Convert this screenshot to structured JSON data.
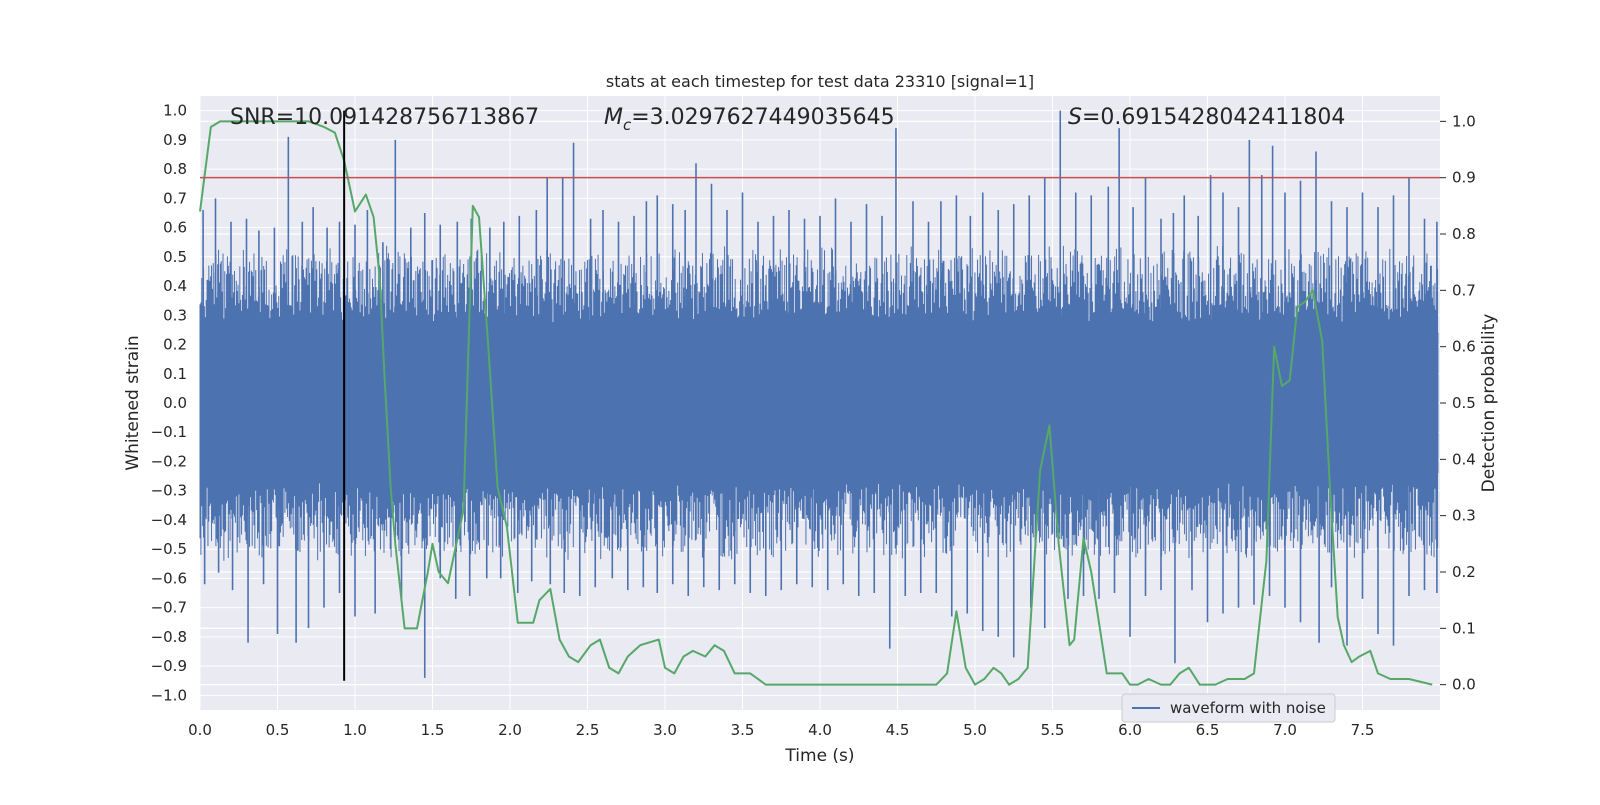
{
  "chart_data": {
    "type": "line",
    "title": "stats at each timestep for test data 23310 [signal=1]",
    "xlabel": "Time (s)",
    "ylabel": "Whitened strain",
    "y2label": "Detection probability",
    "xlim": [
      0.0,
      8.0
    ],
    "ylim": [
      -1.05,
      1.05
    ],
    "y2lim": [
      -0.045,
      1.045
    ],
    "xticks": [
      "0.0",
      "0.5",
      "1.0",
      "1.5",
      "2.0",
      "2.5",
      "3.0",
      "3.5",
      "4.0",
      "4.5",
      "5.0",
      "5.5",
      "6.0",
      "6.5",
      "7.0",
      "7.5"
    ],
    "yticks": [
      "1.0",
      "0.9",
      "0.8",
      "0.7",
      "0.6",
      "0.5",
      "0.4",
      "0.3",
      "0.2",
      "0.1",
      "0.0",
      "-0.1",
      "-0.2",
      "-0.3",
      "-0.4",
      "-0.5",
      "-0.6",
      "-0.7",
      "-0.8",
      "-0.9",
      "-1.0"
    ],
    "y2ticks": [
      "1.0",
      "0.9",
      "0.8",
      "0.7",
      "0.6",
      "0.5",
      "0.4",
      "0.3",
      "0.2",
      "0.1",
      "0.0"
    ],
    "annotations": {
      "snr": "SNR=10.091428756713867",
      "mc_symbol": "M",
      "mc_sub": "c",
      "mc_value": "=3.0297627449035645",
      "s_symbol": "S",
      "s_value": "=0.6915428042411804"
    },
    "threshold_y2": 0.9,
    "event_time_x": 0.93,
    "event_line_ylim": [
      -0.95,
      1.0
    ],
    "legend": {
      "label": "waveform with noise",
      "location": "lower right"
    },
    "series": [
      {
        "name": "waveform with noise",
        "color": "#4c72b0",
        "axis": "left",
        "envelope_hi": 0.45,
        "envelope_lo": -0.45,
        "spikes_up": [
          [
            0.02,
            0.66
          ],
          [
            0.1,
            0.7
          ],
          [
            0.2,
            0.62
          ],
          [
            0.3,
            0.63
          ],
          [
            0.38,
            0.59
          ],
          [
            0.48,
            0.6
          ],
          [
            0.57,
            0.91
          ],
          [
            0.66,
            0.62
          ],
          [
            0.73,
            0.67
          ],
          [
            0.82,
            0.6
          ],
          [
            0.9,
            0.62
          ],
          [
            1.0,
            0.61
          ],
          [
            1.08,
            0.66
          ],
          [
            1.18,
            0.55
          ],
          [
            1.26,
            0.9
          ],
          [
            1.36,
            0.6
          ],
          [
            1.45,
            0.65
          ],
          [
            1.55,
            0.61
          ],
          [
            1.66,
            0.62
          ],
          [
            1.75,
            0.63
          ],
          [
            1.87,
            0.6
          ],
          [
            1.96,
            0.62
          ],
          [
            2.06,
            0.64
          ],
          [
            2.17,
            0.66
          ],
          [
            2.24,
            0.77
          ],
          [
            2.34,
            0.77
          ],
          [
            2.41,
            0.89
          ],
          [
            2.52,
            0.63
          ],
          [
            2.6,
            0.66
          ],
          [
            2.7,
            0.62
          ],
          [
            2.8,
            0.64
          ],
          [
            2.88,
            0.69
          ],
          [
            2.95,
            0.71
          ],
          [
            3.05,
            0.68
          ],
          [
            3.13,
            0.66
          ],
          [
            3.2,
            0.82
          ],
          [
            3.3,
            0.75
          ],
          [
            3.4,
            0.66
          ],
          [
            3.5,
            0.72
          ],
          [
            3.6,
            0.62
          ],
          [
            3.7,
            0.64
          ],
          [
            3.8,
            0.66
          ],
          [
            3.9,
            0.63
          ],
          [
            4.0,
            0.64
          ],
          [
            4.1,
            0.7
          ],
          [
            4.2,
            0.62
          ],
          [
            4.3,
            0.68
          ],
          [
            4.4,
            0.64
          ],
          [
            4.49,
            0.94
          ],
          [
            4.6,
            0.69
          ],
          [
            4.7,
            0.62
          ],
          [
            4.78,
            0.69
          ],
          [
            4.88,
            0.71
          ],
          [
            4.97,
            0.64
          ],
          [
            5.05,
            0.72
          ],
          [
            5.15,
            0.66
          ],
          [
            5.25,
            0.68
          ],
          [
            5.35,
            0.71
          ],
          [
            5.45,
            0.77
          ],
          [
            5.55,
            1.0
          ],
          [
            5.65,
            0.72
          ],
          [
            5.75,
            0.71
          ],
          [
            5.86,
            0.74
          ],
          [
            5.93,
            0.94
          ],
          [
            6.02,
            0.67
          ],
          [
            6.1,
            0.77
          ],
          [
            6.2,
            0.63
          ],
          [
            6.28,
            0.65
          ],
          [
            6.35,
            0.71
          ],
          [
            6.44,
            0.64
          ],
          [
            6.52,
            0.78
          ],
          [
            6.6,
            0.72
          ],
          [
            6.7,
            0.67
          ],
          [
            6.77,
            0.9
          ],
          [
            6.85,
            0.78
          ],
          [
            6.92,
            0.88
          ],
          [
            7.0,
            0.72
          ],
          [
            7.1,
            0.76
          ],
          [
            7.2,
            0.86
          ],
          [
            7.3,
            0.69
          ],
          [
            7.4,
            0.67
          ],
          [
            7.5,
            0.72
          ],
          [
            7.6,
            0.67
          ],
          [
            7.7,
            0.71
          ],
          [
            7.8,
            0.77
          ],
          [
            7.9,
            0.63
          ],
          [
            7.98,
            0.62
          ]
        ],
        "spikes_down": [
          [
            0.03,
            -0.62
          ],
          [
            0.12,
            -0.58
          ],
          [
            0.21,
            -0.64
          ],
          [
            0.31,
            -0.82
          ],
          [
            0.41,
            -0.62
          ],
          [
            0.5,
            -0.79
          ],
          [
            0.62,
            -0.82
          ],
          [
            0.7,
            -0.77
          ],
          [
            0.8,
            -0.7
          ],
          [
            0.9,
            -0.65
          ],
          [
            1.0,
            -0.73
          ],
          [
            1.13,
            -0.72
          ],
          [
            1.3,
            -0.67
          ],
          [
            1.45,
            -0.94
          ],
          [
            1.55,
            -0.6
          ],
          [
            1.65,
            -0.67
          ],
          [
            1.74,
            -0.66
          ],
          [
            1.85,
            -0.6
          ],
          [
            1.94,
            -0.6
          ],
          [
            2.05,
            -0.65
          ],
          [
            2.14,
            -0.61
          ],
          [
            2.26,
            -0.62
          ],
          [
            2.35,
            -0.65
          ],
          [
            2.45,
            -0.66
          ],
          [
            2.55,
            -0.63
          ],
          [
            2.66,
            -0.6
          ],
          [
            2.76,
            -0.64
          ],
          [
            2.86,
            -0.63
          ],
          [
            2.95,
            -0.65
          ],
          [
            3.05,
            -0.62
          ],
          [
            3.15,
            -0.66
          ],
          [
            3.25,
            -0.63
          ],
          [
            3.35,
            -0.64
          ],
          [
            3.45,
            -0.62
          ],
          [
            3.55,
            -0.65
          ],
          [
            3.65,
            -0.66
          ],
          [
            3.75,
            -0.64
          ],
          [
            3.85,
            -0.62
          ],
          [
            3.95,
            -0.63
          ],
          [
            4.05,
            -0.64
          ],
          [
            4.15,
            -0.62
          ],
          [
            4.25,
            -0.66
          ],
          [
            4.35,
            -0.65
          ],
          [
            4.45,
            -0.84
          ],
          [
            4.55,
            -0.66
          ],
          [
            4.65,
            -0.65
          ],
          [
            4.75,
            -0.65
          ],
          [
            4.85,
            -0.73
          ],
          [
            4.95,
            -0.72
          ],
          [
            5.05,
            -0.78
          ],
          [
            5.15,
            -0.8
          ],
          [
            5.25,
            -0.87
          ],
          [
            5.36,
            -0.7
          ],
          [
            5.45,
            -0.77
          ],
          [
            5.6,
            -0.67
          ],
          [
            5.7,
            -0.66
          ],
          [
            5.8,
            -0.67
          ],
          [
            5.9,
            -0.65
          ],
          [
            6.0,
            -0.8
          ],
          [
            6.1,
            -0.66
          ],
          [
            6.2,
            -0.64
          ],
          [
            6.29,
            -0.89
          ],
          [
            6.4,
            -0.64
          ],
          [
            6.5,
            -0.75
          ],
          [
            6.6,
            -0.72
          ],
          [
            6.7,
            -0.7
          ],
          [
            6.8,
            -0.69
          ],
          [
            6.9,
            -0.66
          ],
          [
            7.0,
            -0.7
          ],
          [
            7.1,
            -0.75
          ],
          [
            7.22,
            -0.82
          ],
          [
            7.3,
            -0.63
          ],
          [
            7.4,
            -0.83
          ],
          [
            7.5,
            -0.67
          ],
          [
            7.6,
            -0.79
          ],
          [
            7.7,
            -0.83
          ],
          [
            7.8,
            -0.66
          ],
          [
            7.9,
            -0.64
          ],
          [
            7.98,
            -0.65
          ]
        ]
      },
      {
        "name": "detection probability",
        "color": "#55a868",
        "axis": "right",
        "x": [
          0.0,
          0.07,
          0.13,
          0.2,
          0.3,
          0.4,
          0.5,
          0.6,
          0.7,
          0.8,
          0.87,
          0.93,
          1.0,
          1.07,
          1.12,
          1.16,
          1.19,
          1.23,
          1.26,
          1.32,
          1.4,
          1.47,
          1.5,
          1.54,
          1.6,
          1.7,
          1.76,
          1.8,
          1.86,
          1.92,
          1.98,
          2.05,
          2.15,
          2.19,
          2.26,
          2.32,
          2.38,
          2.44,
          2.52,
          2.58,
          2.64,
          2.7,
          2.76,
          2.84,
          2.96,
          3.0,
          3.06,
          3.12,
          3.18,
          3.26,
          3.32,
          3.38,
          3.45,
          3.55,
          3.65,
          3.8,
          4.0,
          4.2,
          4.4,
          4.6,
          4.75,
          4.82,
          4.88,
          4.94,
          5.0,
          5.06,
          5.12,
          5.17,
          5.22,
          5.28,
          5.34,
          5.42,
          5.48,
          5.54,
          5.61,
          5.64,
          5.7,
          5.75,
          5.85,
          5.95,
          6.0,
          6.05,
          6.12,
          6.2,
          6.26,
          6.32,
          6.38,
          6.45,
          6.5,
          6.55,
          6.63,
          6.7,
          6.74,
          6.8,
          6.88,
          6.93,
          6.98,
          7.03,
          7.08,
          7.13,
          7.18,
          7.24,
          7.29,
          7.34,
          7.38,
          7.43,
          7.48,
          7.55,
          7.6,
          7.68,
          7.8,
          7.95
        ],
        "y": [
          0.84,
          0.99,
          1.0,
          1.0,
          1.0,
          1.0,
          1.0,
          1.0,
          1.0,
          0.99,
          0.98,
          0.93,
          0.84,
          0.87,
          0.83,
          0.72,
          0.55,
          0.35,
          0.25,
          0.1,
          0.1,
          0.2,
          0.25,
          0.2,
          0.18,
          0.31,
          0.85,
          0.83,
          0.6,
          0.35,
          0.28,
          0.11,
          0.11,
          0.15,
          0.17,
          0.08,
          0.05,
          0.04,
          0.07,
          0.08,
          0.03,
          0.02,
          0.05,
          0.07,
          0.08,
          0.03,
          0.02,
          0.05,
          0.06,
          0.05,
          0.07,
          0.06,
          0.02,
          0.02,
          0.0,
          0.0,
          0.0,
          0.0,
          0.0,
          0.0,
          0.0,
          0.02,
          0.13,
          0.03,
          0.0,
          0.01,
          0.03,
          0.02,
          0.0,
          0.01,
          0.03,
          0.38,
          0.46,
          0.25,
          0.07,
          0.08,
          0.26,
          0.2,
          0.02,
          0.02,
          0.0,
          0.0,
          0.01,
          0.0,
          0.0,
          0.02,
          0.03,
          0.0,
          0.0,
          0.0,
          0.01,
          0.01,
          0.01,
          0.02,
          0.22,
          0.6,
          0.53,
          0.54,
          0.67,
          0.68,
          0.7,
          0.61,
          0.35,
          0.12,
          0.07,
          0.04,
          0.05,
          0.06,
          0.02,
          0.01,
          0.01,
          0.0
        ]
      }
    ]
  }
}
